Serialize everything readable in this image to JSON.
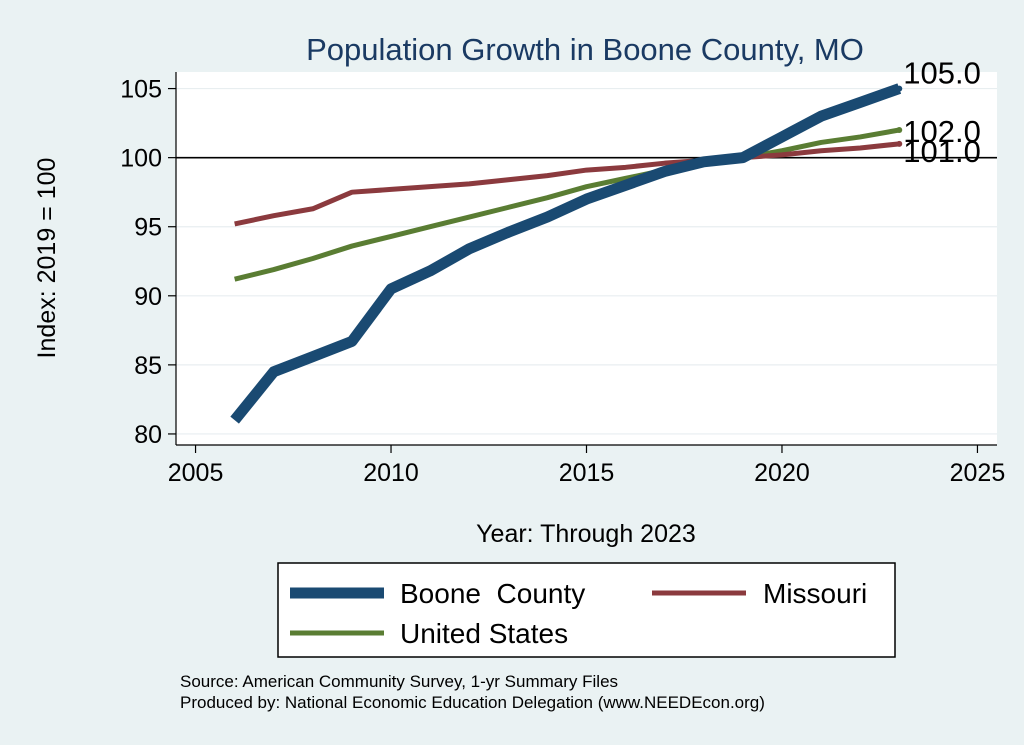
{
  "chart_data": {
    "type": "line",
    "title": "Population Growth in Boone County, MO",
    "xlabel": "Year: Through 2023",
    "ylabel": "Index: 2019 = 100",
    "xlim": [
      2004.5,
      2025.5
    ],
    "ylim": [
      79.2,
      106.2
    ],
    "xticks": [
      2005,
      2010,
      2015,
      2020,
      2025
    ],
    "yticks": [
      80,
      85,
      90,
      95,
      100,
      105
    ],
    "reference_line": 100,
    "grid": true,
    "series": [
      {
        "name": "Boone  County",
        "color": "#1a4a72",
        "x": [
          2006,
          2007,
          2008,
          2009,
          2010,
          2011,
          2012,
          2013,
          2014,
          2015,
          2016,
          2017,
          2018,
          2019,
          2020,
          2021,
          2022,
          2023
        ],
        "values": [
          81.0,
          84.5,
          85.6,
          86.7,
          90.5,
          91.8,
          93.4,
          94.6,
          95.7,
          97.0,
          98.0,
          99.0,
          99.7,
          100.0,
          101.5,
          103.0,
          104.0,
          105.0
        ],
        "end_label": "105.0"
      },
      {
        "name": "Missouri",
        "color": "#8b3a3e",
        "x": [
          2006,
          2007,
          2008,
          2009,
          2010,
          2011,
          2012,
          2013,
          2014,
          2015,
          2016,
          2017,
          2018,
          2019,
          2020,
          2021,
          2022,
          2023
        ],
        "values": [
          95.2,
          95.8,
          96.3,
          97.5,
          97.7,
          97.9,
          98.1,
          98.4,
          98.7,
          99.1,
          99.3,
          99.6,
          99.8,
          100.0,
          100.2,
          100.5,
          100.7,
          101.0
        ],
        "end_label": "101.0"
      },
      {
        "name": "United States",
        "color": "#5a7d33",
        "x": [
          2006,
          2007,
          2008,
          2009,
          2010,
          2011,
          2012,
          2013,
          2014,
          2015,
          2016,
          2017,
          2018,
          2019,
          2020,
          2021,
          2022,
          2023
        ],
        "values": [
          91.2,
          91.9,
          92.7,
          93.6,
          94.3,
          95.0,
          95.7,
          96.4,
          97.1,
          97.9,
          98.5,
          99.1,
          99.6,
          100.0,
          100.5,
          101.1,
          101.5,
          102.0
        ],
        "end_label": "102.0"
      }
    ],
    "legend": {
      "position": "bottom",
      "entries": [
        "Boone  County",
        "Missouri",
        "United States"
      ]
    }
  },
  "source_note": "Source: American Community Survey, 1-yr Summary Files",
  "produced_note": "Produced by: National Economic Education Delegation (www.NEEDEcon.org)"
}
